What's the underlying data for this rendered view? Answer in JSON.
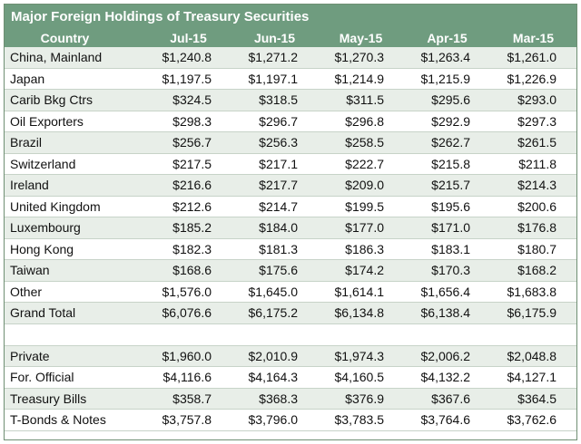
{
  "chart_data": {
    "type": "table",
    "title": "Major Foreign Holdings of Treasury Securities",
    "columns": [
      "Country",
      "Jul-15",
      "Jun-15",
      "May-15",
      "Apr-15",
      "Mar-15"
    ],
    "rows": [
      {
        "label": "China, Mainland",
        "values": [
          "$1,240.8",
          "$1,271.2",
          "$1,270.3",
          "$1,263.4",
          "$1,261.0"
        ]
      },
      {
        "label": "Japan",
        "values": [
          "$1,197.5",
          "$1,197.1",
          "$1,214.9",
          "$1,215.9",
          "$1,226.9"
        ]
      },
      {
        "label": "Carib Bkg Ctrs",
        "values": [
          "$324.5",
          "$318.5",
          "$311.5",
          "$295.6",
          "$293.0"
        ]
      },
      {
        "label": "Oil Exporters",
        "values": [
          "$298.3",
          "$296.7",
          "$296.8",
          "$292.9",
          "$297.3"
        ]
      },
      {
        "label": "Brazil",
        "values": [
          "$256.7",
          "$256.3",
          "$258.5",
          "$262.7",
          "$261.5"
        ]
      },
      {
        "label": "Switzerland",
        "values": [
          "$217.5",
          "$217.1",
          "$222.7",
          "$215.8",
          "$211.8"
        ]
      },
      {
        "label": "Ireland",
        "values": [
          "$216.6",
          "$217.7",
          "$209.0",
          "$215.7",
          "$214.3"
        ]
      },
      {
        "label": "United Kingdom",
        "values": [
          "$212.6",
          "$214.7",
          "$199.5",
          "$195.6",
          "$200.6"
        ]
      },
      {
        "label": "Luxembourg",
        "values": [
          "$185.2",
          "$184.0",
          "$177.0",
          "$171.0",
          "$176.8"
        ]
      },
      {
        "label": "Hong Kong",
        "values": [
          "$182.3",
          "$181.3",
          "$186.3",
          "$183.1",
          "$180.7"
        ]
      },
      {
        "label": "Taiwan",
        "values": [
          "$168.6",
          "$175.6",
          "$174.2",
          "$170.3",
          "$168.2"
        ]
      },
      {
        "label": "Other",
        "values": [
          "$1,576.0",
          "$1,645.0",
          "$1,614.1",
          "$1,656.4",
          "$1,683.8"
        ]
      },
      {
        "label": "Grand Total",
        "values": [
          "$6,076.6",
          "$6,175.2",
          "$6,134.8",
          "$6,138.4",
          "$6,175.9"
        ]
      }
    ],
    "rows_secondary": [
      {
        "label": "Private",
        "values": [
          "$1,960.0",
          "$2,010.9",
          "$1,974.3",
          "$2,006.2",
          "$2,048.8"
        ]
      },
      {
        "label": "For. Official",
        "values": [
          "$4,116.6",
          "$4,164.3",
          "$4,160.5",
          "$4,132.2",
          "$4,127.1"
        ]
      },
      {
        "label": "Treasury Bills",
        "values": [
          "$358.7",
          "$368.3",
          "$376.9",
          "$367.6",
          "$364.5"
        ]
      },
      {
        "label": "T-Bonds & Notes",
        "values": [
          "$3,757.8",
          "$3,796.0",
          "$3,783.5",
          "$3,764.6",
          "$3,762.6"
        ]
      }
    ]
  }
}
